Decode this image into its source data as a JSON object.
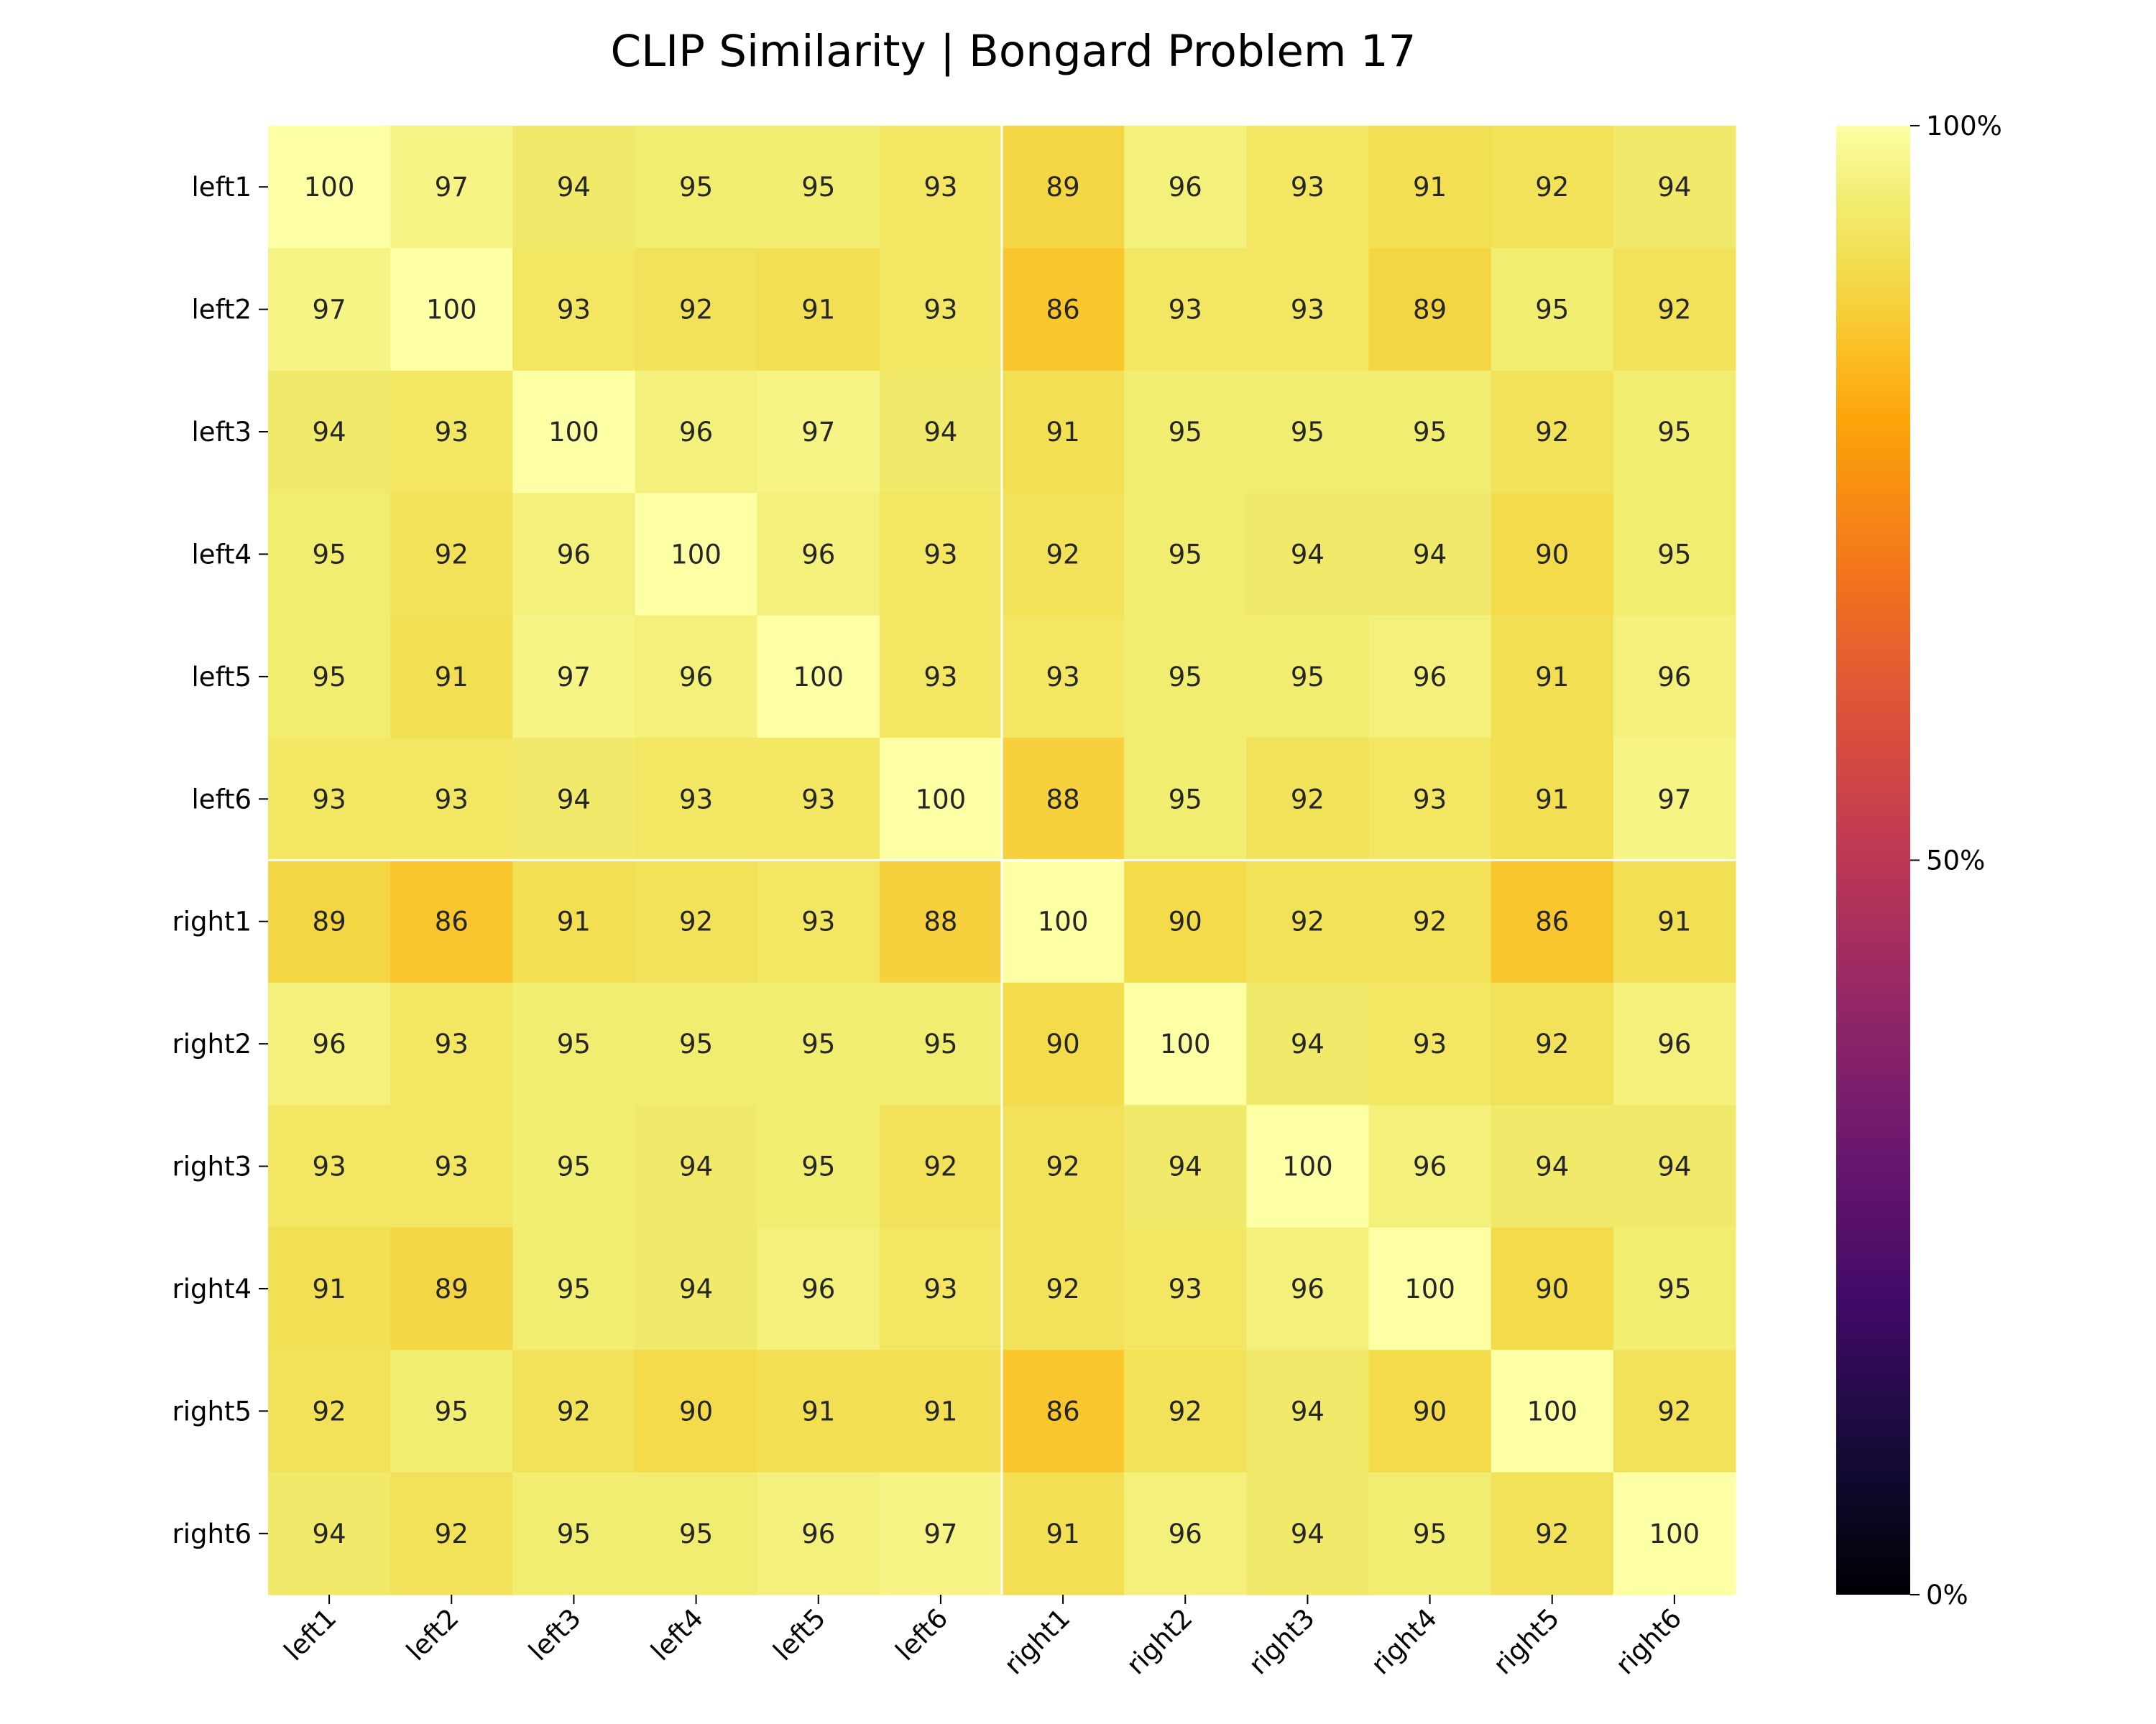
{
  "chart_data": {
    "type": "heatmap",
    "title": "CLIP Similarity | Bongard Problem 17",
    "xlabel": "",
    "ylabel": "",
    "rows": [
      "left1",
      "left2",
      "left3",
      "left4",
      "left5",
      "left6",
      "right1",
      "right2",
      "right3",
      "right4",
      "right5",
      "right6"
    ],
    "columns": [
      "left1",
      "left2",
      "left3",
      "left4",
      "left5",
      "left6",
      "right1",
      "right2",
      "right3",
      "right4",
      "right5",
      "right6"
    ],
    "values": [
      [
        100,
        97,
        94,
        95,
        95,
        93,
        89,
        96,
        93,
        91,
        92,
        94
      ],
      [
        97,
        100,
        93,
        92,
        91,
        93,
        86,
        93,
        93,
        89,
        95,
        92
      ],
      [
        94,
        93,
        100,
        96,
        97,
        94,
        91,
        95,
        95,
        95,
        92,
        95
      ],
      [
        95,
        92,
        96,
        100,
        96,
        93,
        92,
        95,
        94,
        94,
        90,
        95
      ],
      [
        95,
        91,
        97,
        96,
        100,
        93,
        93,
        95,
        95,
        96,
        91,
        96
      ],
      [
        93,
        93,
        94,
        93,
        93,
        100,
        88,
        95,
        92,
        93,
        91,
        97
      ],
      [
        89,
        86,
        91,
        92,
        93,
        88,
        100,
        90,
        92,
        92,
        86,
        91
      ],
      [
        96,
        93,
        95,
        95,
        95,
        95,
        90,
        100,
        94,
        93,
        92,
        96
      ],
      [
        93,
        93,
        95,
        94,
        95,
        92,
        92,
        94,
        100,
        96,
        94,
        94
      ],
      [
        91,
        89,
        95,
        94,
        96,
        93,
        92,
        93,
        96,
        100,
        90,
        95
      ],
      [
        92,
        95,
        92,
        90,
        91,
        91,
        86,
        92,
        94,
        90,
        100,
        92
      ],
      [
        94,
        92,
        95,
        95,
        96,
        97,
        91,
        96,
        94,
        95,
        92,
        100
      ]
    ],
    "value_range": [
      0,
      100
    ],
    "colormap": "inferno",
    "colorbar": {
      "ticks": [
        0,
        50,
        100
      ],
      "tick_labels": [
        "0%",
        "50%",
        "100%"
      ]
    },
    "separator_after_index": 6,
    "separator_color": "#ffffff",
    "grid": false,
    "legend": "colorbar-right"
  }
}
